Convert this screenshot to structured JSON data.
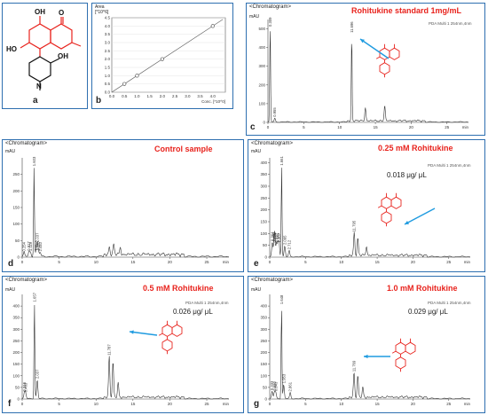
{
  "chart_data": [
    {
      "type": "line",
      "panel": "b",
      "axis_top": "Area\n[*10^6]",
      "xlabel": "Conc. [*10^0]",
      "xlim": [
        0,
        4.5
      ],
      "ylim": [
        0,
        4.5
      ],
      "x_ticks": [
        "0.0",
        "0.5",
        "1.0",
        "1.5",
        "2.0",
        "2.5",
        "3.0",
        "3.5",
        "4.0"
      ],
      "y_ticks": [
        "0.0",
        "0.5",
        "1.0",
        "1.5",
        "2.0",
        "2.5",
        "3.0",
        "3.5",
        "4.0",
        "4.5"
      ],
      "points": [
        [
          0.5,
          0.5
        ],
        [
          1.0,
          1.0
        ],
        [
          2.0,
          2.0
        ],
        [
          4.0,
          4.0
        ]
      ]
    },
    {
      "type": "line",
      "panel": "c",
      "heading": "<Chromatogram>",
      "yunit": "mAU",
      "detector": "PDA Multi 1 254nm,4nm",
      "title": "Rohitukine standard 1mg/mL",
      "ylim": [
        0,
        550
      ],
      "xlim": [
        0,
        28
      ],
      "y_ticks": [
        "0",
        "100",
        "200",
        "300",
        "400",
        "500"
      ],
      "x_ticks": [
        "0",
        "5",
        "10",
        "15",
        "20",
        "25"
      ],
      "xlabel": "min",
      "peaks": [
        {
          "rt": 0.309,
          "height": 530,
          "label": "0.309"
        },
        {
          "rt": 0.955,
          "height": 20,
          "label": "0.955"
        },
        {
          "rt": 11.696,
          "height": 470,
          "label": "11.696"
        },
        {
          "rt": 13.6,
          "height": 70,
          "label": ""
        },
        {
          "rt": 16.3,
          "height": 80,
          "label": ""
        }
      ]
    },
    {
      "type": "line",
      "panel": "d",
      "heading": "<Chromatogram>",
      "yunit": "mAU",
      "title": "Control sample",
      "ylim": [
        0,
        300
      ],
      "xlim": [
        0,
        28
      ],
      "y_ticks": [
        "0",
        "50",
        "100",
        "150",
        "200",
        "250"
      ],
      "x_ticks": [
        "0",
        "5",
        "10",
        "15",
        "20",
        "25"
      ],
      "xlabel": "min",
      "peaks": [
        {
          "rt": 0.254,
          "height": 12,
          "label": "0.254"
        },
        {
          "rt": 0.917,
          "height": 14,
          "label": "0.917"
        },
        {
          "rt": 1.119,
          "height": 13,
          "label": "1.119"
        },
        {
          "rt": 1.603,
          "height": 270,
          "label": "1.603"
        },
        {
          "rt": 1.867,
          "height": 15,
          "label": "1.867"
        },
        {
          "rt": 2.037,
          "height": 40,
          "label": "2.037"
        },
        {
          "rt": 2.197,
          "height": 15,
          "label": "2.197"
        },
        {
          "rt": 2.44,
          "height": 12,
          "label": "2.440"
        },
        {
          "rt": 11.8,
          "height": 25,
          "label": ""
        },
        {
          "rt": 12.4,
          "height": 30,
          "label": ""
        },
        {
          "rt": 13.3,
          "height": 22,
          "label": ""
        }
      ]
    },
    {
      "type": "line",
      "panel": "e",
      "heading": "<Chromatogram>",
      "yunit": "mAU",
      "detector": "PDA Multi 1 254nm,4nm",
      "title": "0.25 mM Rohitukine",
      "concentration": "0.018 μg/ μL",
      "ylim": [
        0,
        420
      ],
      "xlim": [
        0,
        28
      ],
      "y_ticks": [
        "0",
        "50",
        "100",
        "150",
        "200",
        "250",
        "300",
        "350",
        "400"
      ],
      "x_ticks": [
        "0",
        "5",
        "10",
        "15",
        "20",
        "25"
      ],
      "xlabel": "min",
      "peaks": [
        {
          "rt": 1.661,
          "height": 380,
          "label": "1.661"
        },
        {
          "rt": 0.364,
          "height": 60,
          "label": "0.364"
        },
        {
          "rt": 0.633,
          "height": 60,
          "label": "0.633"
        },
        {
          "rt": 0.691,
          "height": 55,
          "label": "0.691"
        },
        {
          "rt": 0.937,
          "height": 55,
          "label": "0.937"
        },
        {
          "rt": 1.141,
          "height": 55,
          "label": "1.141"
        },
        {
          "rt": 1.307,
          "height": 55,
          "label": "1.307"
        },
        {
          "rt": 2.095,
          "height": 45,
          "label": "2.095"
        },
        {
          "rt": 2.712,
          "height": 25,
          "label": "2.712"
        },
        {
          "rt": 11.795,
          "height": 100,
          "label": "11.795"
        },
        {
          "rt": 12.3,
          "height": 70,
          "label": ""
        },
        {
          "rt": 13.5,
          "height": 40,
          "label": ""
        }
      ]
    },
    {
      "type": "line",
      "panel": "f",
      "heading": "<Chromatogram>",
      "yunit": "mAU",
      "detector": "PDA Multi 1 254nm,4nm",
      "title": "0.5 mM Rohitukine",
      "concentration": "0.026 μg/ μL",
      "ylim": [
        0,
        450
      ],
      "xlim": [
        0,
        28
      ],
      "y_ticks": [
        "0",
        "50",
        "100",
        "150",
        "200",
        "250",
        "300",
        "350",
        "400"
      ],
      "x_ticks": [
        "0",
        "5",
        "10",
        "15",
        "20",
        "25"
      ],
      "xlabel": "min",
      "peaks": [
        {
          "rt": 0.315,
          "height": 25,
          "label": "0.315"
        },
        {
          "rt": 0.463,
          "height": 22,
          "label": "0.463"
        },
        {
          "rt": 1.657,
          "height": 410,
          "label": "1.657"
        },
        {
          "rt": 2.037,
          "height": 80,
          "label": "2.037"
        },
        {
          "rt": 11.787,
          "height": 180,
          "label": "11.787"
        },
        {
          "rt": 12.3,
          "height": 150,
          "label": ""
        },
        {
          "rt": 13.0,
          "height": 60,
          "label": ""
        }
      ]
    },
    {
      "type": "line",
      "panel": "g",
      "heading": "<Chromatogram>",
      "yunit": "mAU",
      "detector": "PDA Multi 1 254nm,4nm",
      "title": "1.0 mM Rohitukine",
      "concentration": "0.029 μg/ μL",
      "ylim": [
        0,
        450
      ],
      "xlim": [
        0,
        28
      ],
      "y_ticks": [
        "0",
        "50",
        "100",
        "150",
        "200",
        "250",
        "300",
        "350",
        "400"
      ],
      "x_ticks": [
        "0",
        "5",
        "10",
        "15",
        "20",
        "25"
      ],
      "xlabel": "min",
      "peaks": [
        {
          "rt": 0.333,
          "height": 30,
          "label": "0.333"
        },
        {
          "rt": 0.66,
          "height": 28,
          "label": "0.660"
        },
        {
          "rt": 0.843,
          "height": 26,
          "label": "0.843"
        },
        {
          "rt": 1.648,
          "height": 400,
          "label": "1.648"
        },
        {
          "rt": 1.953,
          "height": 60,
          "label": "1.953"
        },
        {
          "rt": 2.861,
          "height": 25,
          "label": "2.861"
        },
        {
          "rt": 11.769,
          "height": 110,
          "label": "11.769"
        },
        {
          "rt": 12.3,
          "height": 90,
          "label": ""
        },
        {
          "rt": 13.0,
          "height": 40,
          "label": ""
        }
      ]
    }
  ],
  "structure_a": {
    "atoms": [
      "OH",
      "O",
      "HO",
      "OH",
      "N"
    ],
    "letter": "a"
  },
  "letters": [
    "b",
    "c",
    "d",
    "e",
    "f",
    "g"
  ]
}
